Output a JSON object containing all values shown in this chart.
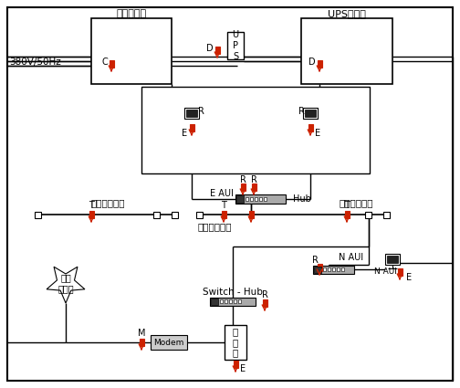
{
  "bg_color": "#ffffff",
  "label_380": "380V/50Hz",
  "label_jifang": "机房配电筱",
  "label_ups_screen": "UPS配电屏",
  "label_ups": "U\nP\nS",
  "label_tongzhou": "同轴粗缆保护",
  "label_gongyong": "公用\n电信网",
  "label_hub": "Hub",
  "label_switch_hub": "Switch - Hub",
  "label_modem": "Modem",
  "label_server": "服\n务\n器",
  "label_C": "C",
  "label_D": "D",
  "label_E": "E",
  "label_R": "R",
  "label_T": "T",
  "label_N_AUI": "N AUI",
  "label_E_AUI": "E AUI",
  "red_color": "#cc2200",
  "black": "#000000",
  "white": "#ffffff",
  "gray_hub": "#888888"
}
